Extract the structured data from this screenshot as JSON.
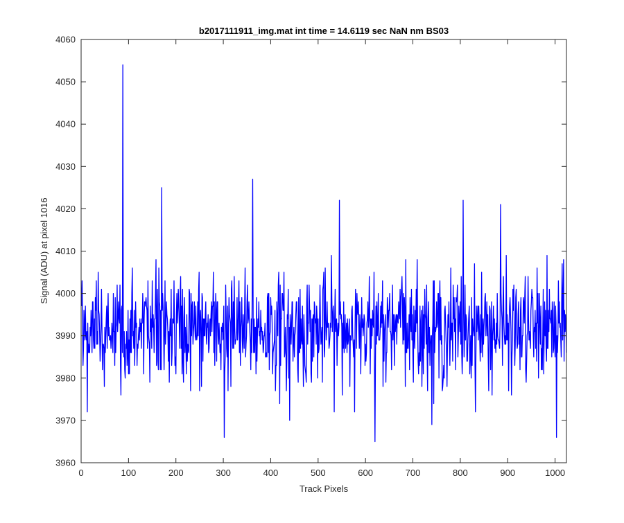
{
  "chart_data": {
    "type": "line",
    "title": "b2017111911_img.mat int time = 14.6119 sec  NaN nm BS03",
    "xlabel": "Track Pixels",
    "ylabel": "Signal (ADU) at pixel 1016",
    "xlim": [
      0,
      1024
    ],
    "ylim": [
      3960,
      4060
    ],
    "xticks": [
      0,
      100,
      200,
      300,
      400,
      500,
      600,
      700,
      800,
      900,
      1000
    ],
    "yticks": [
      3960,
      3970,
      3980,
      3990,
      4000,
      4010,
      4020,
      4030,
      4040,
      4050,
      4060
    ],
    "grid": false,
    "legend": "none",
    "series": [
      {
        "color": "#0000ff",
        "x_start": 1,
        "x_step": 1,
        "n_points": 1024,
        "mean": 3991.5,
        "noise_sd": 6.5,
        "notable_points": [
          {
            "x": 88,
            "y": 4054
          },
          {
            "x": 170,
            "y": 4025
          },
          {
            "x": 362,
            "y": 4027
          },
          {
            "x": 545,
            "y": 4022
          },
          {
            "x": 806,
            "y": 4022
          },
          {
            "x": 885,
            "y": 4021
          },
          {
            "x": 302,
            "y": 3966
          },
          {
            "x": 620,
            "y": 3965
          },
          {
            "x": 1003,
            "y": 3966
          },
          {
            "x": 13,
            "y": 3972
          },
          {
            "x": 440,
            "y": 3970
          },
          {
            "x": 740,
            "y": 3969
          }
        ]
      }
    ]
  }
}
